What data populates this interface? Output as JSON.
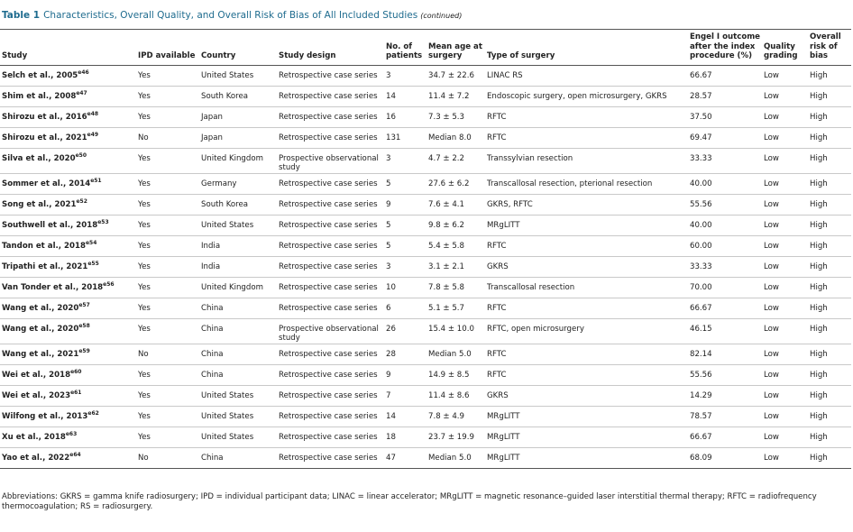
{
  "header": {
    "label": "Table 1",
    "title": "Characteristics, Overall Quality, and Overall Risk of Bias of All Included Studies",
    "note": "(continued)"
  },
  "table": {
    "columns": [
      "Study",
      "IPD available",
      "Country",
      "Study design",
      "No. of patients",
      "Mean age at surgery",
      "Type of surgery",
      "Engel I outcome after the index procedure (%)",
      "Quality grading",
      "Overall risk of bias"
    ],
    "rows": [
      [
        {
          "name": "Selch et al., 2005",
          "ref": "e46"
        },
        "Yes",
        "United States",
        "Retrospective case series",
        "3",
        "34.7 ± 22.6",
        "LINAC RS",
        "66.67",
        "Low",
        "High"
      ],
      [
        {
          "name": "Shim et al., 2008",
          "ref": "e47"
        },
        "Yes",
        "South Korea",
        "Retrospective case series",
        "14",
        "11.4 ± 7.2",
        "Endoscopic surgery, open microsurgery, GKRS",
        "28.57",
        "Low",
        "High"
      ],
      [
        {
          "name": "Shirozu et al., 2016",
          "ref": "e48"
        },
        "Yes",
        "Japan",
        "Retrospective case series",
        "16",
        "7.3 ± 5.3",
        "RFTC",
        "37.50",
        "Low",
        "High"
      ],
      [
        {
          "name": "Shirozu et al., 2021",
          "ref": "e49"
        },
        "No",
        "Japan",
        "Retrospective case series",
        "131",
        "Median 8.0",
        "RFTC",
        "69.47",
        "Low",
        "High"
      ],
      [
        {
          "name": "Silva et al., 2020",
          "ref": "e50"
        },
        "Yes",
        "United Kingdom",
        "Prospective observational study",
        "3",
        "4.7 ± 2.2",
        "Transsylvian resection",
        "33.33",
        "Low",
        "High"
      ],
      [
        {
          "name": "Sommer et al., 2014",
          "ref": "e51"
        },
        "Yes",
        "Germany",
        "Retrospective case series",
        "5",
        "27.6 ± 6.2",
        "Transcallosal resection, pterional resection",
        "40.00",
        "Low",
        "High"
      ],
      [
        {
          "name": "Song et al., 2021",
          "ref": "e52"
        },
        "Yes",
        "South Korea",
        "Retrospective case series",
        "9",
        "7.6 ± 4.1",
        "GKRS, RFTC",
        "55.56",
        "Low",
        "High"
      ],
      [
        {
          "name": "Southwell et al., 2018",
          "ref": "e53"
        },
        "Yes",
        "United States",
        "Retrospective case series",
        "5",
        "9.8 ± 6.2",
        "MRgLITT",
        "40.00",
        "Low",
        "High"
      ],
      [
        {
          "name": "Tandon et al., 2018",
          "ref": "e54"
        },
        "Yes",
        "India",
        "Retrospective case series",
        "5",
        "5.4 ± 5.8",
        "RFTC",
        "60.00",
        "Low",
        "High"
      ],
      [
        {
          "name": "Tripathi et al., 2021",
          "ref": "e55"
        },
        "Yes",
        "India",
        "Retrospective case series",
        "3",
        "3.1 ± 2.1",
        "GKRS",
        "33.33",
        "Low",
        "High"
      ],
      [
        {
          "name": "Van Tonder et al., 2018",
          "ref": "e56"
        },
        "Yes",
        "United Kingdom",
        "Retrospective case series",
        "10",
        "7.8 ± 5.8",
        "Transcallosal resection",
        "70.00",
        "Low",
        "High"
      ],
      [
        {
          "name": "Wang et al., 2020",
          "ref": "e57"
        },
        "Yes",
        "China",
        "Retrospective case series",
        "6",
        "5.1 ± 5.7",
        "RFTC",
        "66.67",
        "Low",
        "High"
      ],
      [
        {
          "name": "Wang et al., 2020",
          "ref": "e58"
        },
        "Yes",
        "China",
        "Prospective observational study",
        "26",
        "15.4 ± 10.0",
        "RFTC, open microsurgery",
        "46.15",
        "Low",
        "High"
      ],
      [
        {
          "name": "Wang et al., 2021",
          "ref": "e59"
        },
        "No",
        "China",
        "Retrospective case series",
        "28",
        "Median 5.0",
        "RFTC",
        "82.14",
        "Low",
        "High"
      ],
      [
        {
          "name": "Wei et al., 2018",
          "ref": "e60"
        },
        "Yes",
        "China",
        "Retrospective case series",
        "9",
        "14.9 ± 8.5",
        "RFTC",
        "55.56",
        "Low",
        "High"
      ],
      [
        {
          "name": "Wei et al., 2023",
          "ref": "e61"
        },
        "Yes",
        "United States",
        "Retrospective case series",
        "7",
        "11.4 ± 8.6",
        "GKRS",
        "14.29",
        "Low",
        "High"
      ],
      [
        {
          "name": "Wilfong et al., 2013",
          "ref": "e62"
        },
        "Yes",
        "United States",
        "Retrospective case series",
        "14",
        "7.8 ± 4.9",
        "MRgLITT",
        "78.57",
        "Low",
        "High"
      ],
      [
        {
          "name": "Xu et al., 2018",
          "ref": "e63"
        },
        "Yes",
        "United States",
        "Retrospective case series",
        "18",
        "23.7 ± 19.9",
        "MRgLITT",
        "66.67",
        "Low",
        "High"
      ],
      [
        {
          "name": "Yao et al., 2022",
          "ref": "e64"
        },
        "No",
        "China",
        "Retrospective case series",
        "47",
        "Median 5.0",
        "MRgLITT",
        "68.09",
        "Low",
        "High"
      ]
    ]
  },
  "footnote": "Abbreviations: GKRS = gamma knife radiosurgery; IPD = individual participant data; LINAC = linear accelerator; MRgLITT = magnetic resonance–guided laser interstitial thermal therapy; RFTC = radiofrequency thermocoagulation; RS = radiosurgery."
}
